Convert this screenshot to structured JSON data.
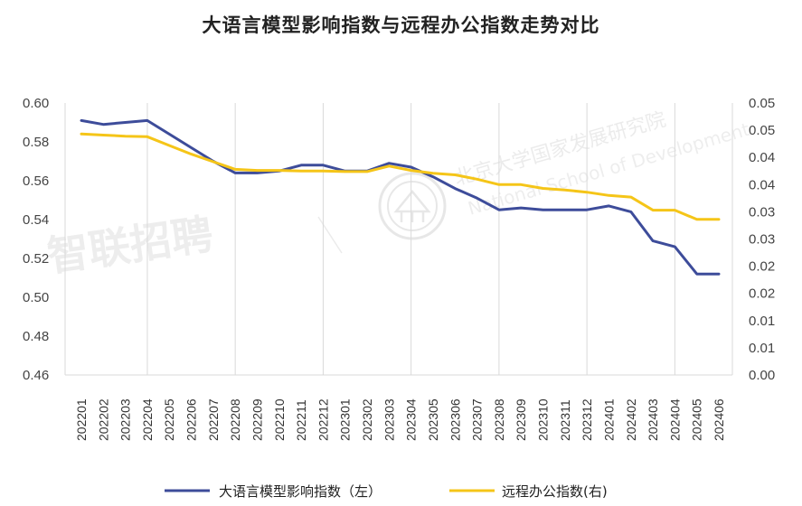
{
  "chart_data": {
    "type": "line",
    "title": "大语言模型影响指数与远程办公指数走势对比",
    "categories": [
      "202201",
      "202202",
      "202203",
      "202204",
      "202205",
      "202206",
      "202207",
      "202208",
      "202209",
      "202210",
      "202211",
      "202212",
      "202301",
      "202302",
      "202303",
      "202304",
      "202305",
      "202306",
      "202307",
      "202308",
      "202309",
      "202310",
      "202311",
      "202312",
      "202401",
      "202402",
      "202403",
      "202404",
      "202405",
      "202406"
    ],
    "series": [
      {
        "name": "大语言模型影响指数（左）",
        "axis": "left",
        "color": "#3D4C9A",
        "values": [
          0.591,
          0.589,
          0.59,
          0.591,
          0.584,
          0.577,
          0.57,
          0.564,
          0.564,
          0.565,
          0.568,
          0.568,
          0.565,
          0.565,
          0.569,
          0.567,
          0.562,
          0.556,
          0.551,
          0.545,
          0.546,
          0.545,
          0.545,
          0.545,
          0.547,
          0.544,
          0.529,
          0.526,
          0.512,
          0.512
        ]
      },
      {
        "name": "远程办公指数(右)",
        "axis": "right",
        "color": "#F5C518",
        "values": [
          0.0443,
          0.0441,
          0.0439,
          0.0438,
          0.0422,
          0.0406,
          0.0392,
          0.0378,
          0.0376,
          0.0376,
          0.0375,
          0.0375,
          0.0374,
          0.0374,
          0.0384,
          0.0376,
          0.0371,
          0.0368,
          0.036,
          0.035,
          0.035,
          0.0343,
          0.034,
          0.0336,
          0.033,
          0.0327,
          0.0303,
          0.0303,
          0.0286,
          0.0286
        ]
      }
    ],
    "y_left": {
      "range": [
        0.46,
        0.6
      ],
      "ticks": [
        "0.60",
        "0.58",
        "0.56",
        "0.54",
        "0.52",
        "0.50",
        "0.48",
        "0.46"
      ]
    },
    "y_right": {
      "range": [
        0.0,
        0.05
      ],
      "ticks": [
        "0.05",
        "0.05",
        "0.04",
        "0.04",
        "0.03",
        "0.03",
        "0.02",
        "0.02",
        "0.01",
        "0.01",
        "0.00"
      ]
    },
    "grid": "vertical every 4 categories",
    "legend_position": "bottom"
  },
  "watermarks": {
    "zhaopin": "智联招聘",
    "pku_cn": "北京大学国家发展研究院",
    "pku_en": "National School of Development"
  },
  "colors": {
    "left_series": "#3D4C9A",
    "right_series": "#F5C518",
    "grid": "#D9D9D9"
  }
}
